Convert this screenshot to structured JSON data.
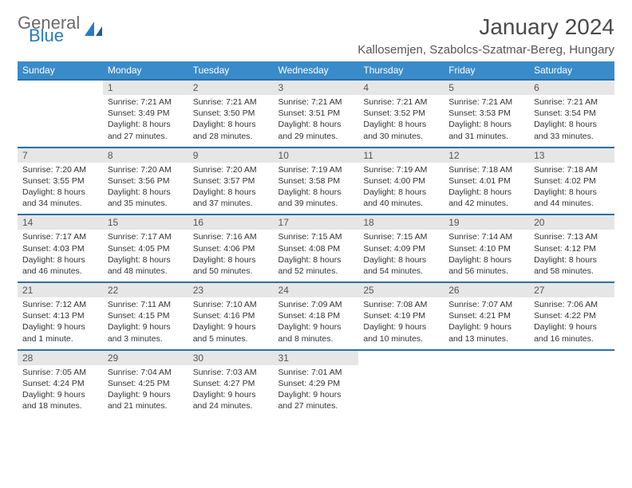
{
  "logo": {
    "part1": "General",
    "part2": "Blue"
  },
  "title": "January 2024",
  "location": "Kallosemjen, Szabolcs-Szatmar-Bereg, Hungary",
  "colors": {
    "header_bg": "#3a8bc9",
    "header_text": "#ffffff",
    "daynum_bg": "#e6e6e6",
    "border": "#2b6fa8",
    "logo_gray": "#6a6a6a",
    "logo_blue": "#2b7bbf"
  },
  "day_headers": [
    "Sunday",
    "Monday",
    "Tuesday",
    "Wednesday",
    "Thursday",
    "Friday",
    "Saturday"
  ],
  "weeks": [
    {
      "nums": [
        "",
        "1",
        "2",
        "3",
        "4",
        "5",
        "6"
      ],
      "cells": [
        null,
        {
          "sunrise": "7:21 AM",
          "sunset": "3:49 PM",
          "daylight": "8 hours and 27 minutes."
        },
        {
          "sunrise": "7:21 AM",
          "sunset": "3:50 PM",
          "daylight": "8 hours and 28 minutes."
        },
        {
          "sunrise": "7:21 AM",
          "sunset": "3:51 PM",
          "daylight": "8 hours and 29 minutes."
        },
        {
          "sunrise": "7:21 AM",
          "sunset": "3:52 PM",
          "daylight": "8 hours and 30 minutes."
        },
        {
          "sunrise": "7:21 AM",
          "sunset": "3:53 PM",
          "daylight": "8 hours and 31 minutes."
        },
        {
          "sunrise": "7:21 AM",
          "sunset": "3:54 PM",
          "daylight": "8 hours and 33 minutes."
        }
      ]
    },
    {
      "nums": [
        "7",
        "8",
        "9",
        "10",
        "11",
        "12",
        "13"
      ],
      "cells": [
        {
          "sunrise": "7:20 AM",
          "sunset": "3:55 PM",
          "daylight": "8 hours and 34 minutes."
        },
        {
          "sunrise": "7:20 AM",
          "sunset": "3:56 PM",
          "daylight": "8 hours and 35 minutes."
        },
        {
          "sunrise": "7:20 AM",
          "sunset": "3:57 PM",
          "daylight": "8 hours and 37 minutes."
        },
        {
          "sunrise": "7:19 AM",
          "sunset": "3:58 PM",
          "daylight": "8 hours and 39 minutes."
        },
        {
          "sunrise": "7:19 AM",
          "sunset": "4:00 PM",
          "daylight": "8 hours and 40 minutes."
        },
        {
          "sunrise": "7:18 AM",
          "sunset": "4:01 PM",
          "daylight": "8 hours and 42 minutes."
        },
        {
          "sunrise": "7:18 AM",
          "sunset": "4:02 PM",
          "daylight": "8 hours and 44 minutes."
        }
      ]
    },
    {
      "nums": [
        "14",
        "15",
        "16",
        "17",
        "18",
        "19",
        "20"
      ],
      "cells": [
        {
          "sunrise": "7:17 AM",
          "sunset": "4:03 PM",
          "daylight": "8 hours and 46 minutes."
        },
        {
          "sunrise": "7:17 AM",
          "sunset": "4:05 PM",
          "daylight": "8 hours and 48 minutes."
        },
        {
          "sunrise": "7:16 AM",
          "sunset": "4:06 PM",
          "daylight": "8 hours and 50 minutes."
        },
        {
          "sunrise": "7:15 AM",
          "sunset": "4:08 PM",
          "daylight": "8 hours and 52 minutes."
        },
        {
          "sunrise": "7:15 AM",
          "sunset": "4:09 PM",
          "daylight": "8 hours and 54 minutes."
        },
        {
          "sunrise": "7:14 AM",
          "sunset": "4:10 PM",
          "daylight": "8 hours and 56 minutes."
        },
        {
          "sunrise": "7:13 AM",
          "sunset": "4:12 PM",
          "daylight": "8 hours and 58 minutes."
        }
      ]
    },
    {
      "nums": [
        "21",
        "22",
        "23",
        "24",
        "25",
        "26",
        "27"
      ],
      "cells": [
        {
          "sunrise": "7:12 AM",
          "sunset": "4:13 PM",
          "daylight": "9 hours and 1 minute."
        },
        {
          "sunrise": "7:11 AM",
          "sunset": "4:15 PM",
          "daylight": "9 hours and 3 minutes."
        },
        {
          "sunrise": "7:10 AM",
          "sunset": "4:16 PM",
          "daylight": "9 hours and 5 minutes."
        },
        {
          "sunrise": "7:09 AM",
          "sunset": "4:18 PM",
          "daylight": "9 hours and 8 minutes."
        },
        {
          "sunrise": "7:08 AM",
          "sunset": "4:19 PM",
          "daylight": "9 hours and 10 minutes."
        },
        {
          "sunrise": "7:07 AM",
          "sunset": "4:21 PM",
          "daylight": "9 hours and 13 minutes."
        },
        {
          "sunrise": "7:06 AM",
          "sunset": "4:22 PM",
          "daylight": "9 hours and 16 minutes."
        }
      ]
    },
    {
      "nums": [
        "28",
        "29",
        "30",
        "31",
        "",
        "",
        ""
      ],
      "cells": [
        {
          "sunrise": "7:05 AM",
          "sunset": "4:24 PM",
          "daylight": "9 hours and 18 minutes."
        },
        {
          "sunrise": "7:04 AM",
          "sunset": "4:25 PM",
          "daylight": "9 hours and 21 minutes."
        },
        {
          "sunrise": "7:03 AM",
          "sunset": "4:27 PM",
          "daylight": "9 hours and 24 minutes."
        },
        {
          "sunrise": "7:01 AM",
          "sunset": "4:29 PM",
          "daylight": "9 hours and 27 minutes."
        },
        null,
        null,
        null
      ]
    }
  ],
  "labels": {
    "sunrise": "Sunrise:",
    "sunset": "Sunset:",
    "daylight": "Daylight:"
  }
}
